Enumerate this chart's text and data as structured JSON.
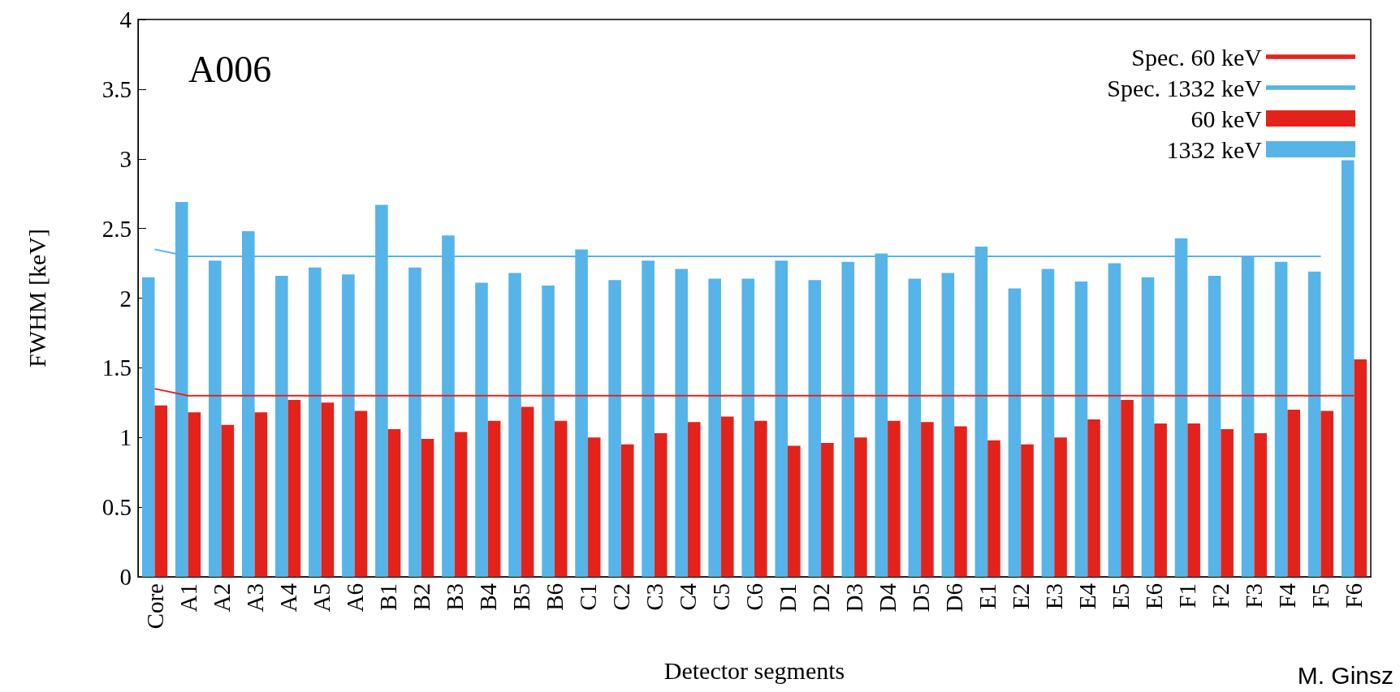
{
  "chart_data": {
    "type": "bar",
    "xlabel": "Detector segments",
    "ylabel": "FWHM [keV]",
    "categories": [
      "Core",
      "A1",
      "A2",
      "A3",
      "A4",
      "A5",
      "A6",
      "B1",
      "B2",
      "B3",
      "B4",
      "B5",
      "B6",
      "C1",
      "C2",
      "C3",
      "C4",
      "C5",
      "C6",
      "D1",
      "D2",
      "D3",
      "D4",
      "D5",
      "D6",
      "E1",
      "E2",
      "E3",
      "E4",
      "E5",
      "E6",
      "F1",
      "F2",
      "F3",
      "F4",
      "F5",
      "F6"
    ],
    "series": [
      {
        "name": "Spec. 60 keV",
        "type": "line",
        "color": "#e3231b",
        "values": [
          1.35,
          1.3,
          1.3,
          1.3,
          1.3,
          1.3,
          1.3,
          1.3,
          1.3,
          1.3,
          1.3,
          1.3,
          1.3,
          1.3,
          1.3,
          1.3,
          1.3,
          1.3,
          1.3,
          1.3,
          1.3,
          1.3,
          1.3,
          1.3,
          1.3,
          1.3,
          1.3,
          1.3,
          1.3,
          1.3,
          1.3,
          1.3,
          1.3,
          1.3,
          1.3,
          1.3,
          1.3
        ]
      },
      {
        "name": "Spec. 1332 keV",
        "type": "line",
        "color": "#56b4e9",
        "values": [
          2.35,
          2.3,
          2.3,
          2.3,
          2.3,
          2.3,
          2.3,
          2.3,
          2.3,
          2.3,
          2.3,
          2.3,
          2.3,
          2.3,
          2.3,
          2.3,
          2.3,
          2.3,
          2.3,
          2.3,
          2.3,
          2.3,
          2.3,
          2.3,
          2.3,
          2.3,
          2.3,
          2.3,
          2.3,
          2.3,
          2.3,
          2.3,
          2.3,
          2.3,
          2.3,
          2.3,
          null
        ]
      },
      {
        "name": "1332 keV",
        "color": "#56b4e9",
        "values": [
          2.15,
          2.69,
          2.27,
          2.48,
          2.16,
          2.22,
          2.17,
          2.67,
          2.22,
          2.45,
          2.11,
          2.18,
          2.09,
          2.35,
          2.13,
          2.27,
          2.21,
          2.14,
          2.14,
          2.27,
          2.13,
          2.26,
          2.32,
          2.14,
          2.18,
          2.37,
          2.07,
          2.21,
          2.12,
          2.25,
          2.15,
          2.43,
          2.16,
          2.3,
          2.26,
          2.19,
          2.99
        ]
      },
      {
        "name": "60 keV",
        "color": "#e3231b",
        "values": [
          1.23,
          1.18,
          1.09,
          1.18,
          1.27,
          1.25,
          1.19,
          1.06,
          0.99,
          1.04,
          1.12,
          1.22,
          1.12,
          1.0,
          0.95,
          1.03,
          1.11,
          1.15,
          1.12,
          0.94,
          0.96,
          1.0,
          1.12,
          1.11,
          1.08,
          0.98,
          0.95,
          1.0,
          1.13,
          1.27,
          1.1,
          1.1,
          1.06,
          1.03,
          1.2,
          1.19,
          1.56
        ]
      }
    ],
    "ylim": [
      0,
      4
    ],
    "yticks": [
      0,
      0.5,
      1,
      1.5,
      2,
      2.5,
      3,
      3.5,
      4
    ],
    "grid": false,
    "legend": "top right",
    "marker": "none",
    "line_style": "solid",
    "annotations": [
      "A006",
      "M. Ginsz"
    ]
  }
}
